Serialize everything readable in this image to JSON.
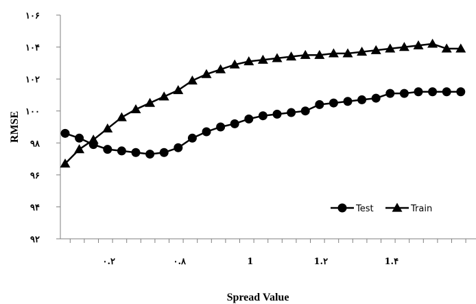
{
  "chart_data": {
    "type": "line",
    "xlabel": "Spread Value",
    "ylabel": "RMSE",
    "ylim": [
      92,
      106
    ],
    "yticks": [
      92,
      94,
      96,
      98,
      100,
      102,
      104,
      106
    ],
    "ytick_labels": [
      "۹۲",
      "۹۴",
      "۹۶",
      "۹۸",
      "۱۰۰",
      "۱۰۲",
      "۱۰۴",
      "۱۰۶"
    ],
    "xtick_labels": [
      "۰.۲",
      "۰.۸",
      "1",
      "1.۲",
      "1.۴"
    ],
    "xtick_positions": [
      3,
      8,
      13,
      18,
      23
    ],
    "x": [
      0,
      1,
      2,
      3,
      4,
      5,
      6,
      7,
      8,
      9,
      10,
      11,
      12,
      13,
      14,
      15,
      16,
      17,
      18,
      19,
      20,
      21,
      22,
      23,
      24,
      25,
      26,
      27,
      28
    ],
    "legend_position": "bottom-right",
    "grid": false,
    "series": [
      {
        "name": "Test",
        "marker": "circle",
        "color": "#000000",
        "values": [
          98.6,
          98.3,
          97.9,
          97.6,
          97.5,
          97.4,
          97.3,
          97.4,
          97.7,
          98.3,
          98.7,
          99.0,
          99.2,
          99.5,
          99.7,
          99.8,
          99.9,
          100.0,
          100.4,
          100.5,
          100.6,
          100.7,
          100.8,
          101.1,
          101.1,
          101.2,
          101.2,
          101.2,
          101.2
        ]
      },
      {
        "name": "Train",
        "marker": "triangle",
        "color": "#000000",
        "values": [
          96.7,
          97.6,
          98.2,
          98.9,
          99.6,
          100.1,
          100.5,
          100.9,
          101.3,
          101.9,
          102.3,
          102.6,
          102.9,
          103.1,
          103.2,
          103.3,
          103.4,
          103.5,
          103.5,
          103.6,
          103.6,
          103.7,
          103.8,
          103.9,
          104.0,
          104.1,
          104.2,
          103.9,
          103.9
        ]
      }
    ]
  }
}
